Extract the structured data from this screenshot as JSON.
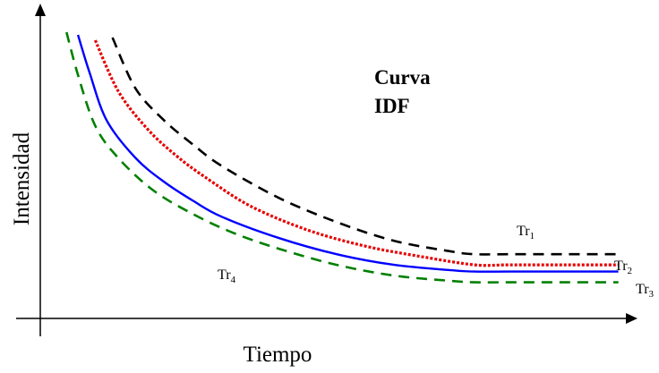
{
  "chart_data": {
    "type": "line",
    "title": "Curva IDF",
    "title_lines": [
      "Curva",
      "IDF"
    ],
    "xlabel": "Tiempo",
    "ylabel": "Intensidad",
    "xlim": [
      0,
      100
    ],
    "ylim": [
      0,
      100
    ],
    "grid": false,
    "axis_ticks": false,
    "series": [
      {
        "name": "Tr1",
        "label_base": "Tr",
        "label_sub": "1",
        "color": "#000000",
        "line_style": "dashed",
        "x": [
          11,
          15,
          20,
          25,
          30,
          40,
          50,
          60,
          70,
          74,
          80,
          90,
          99
        ],
        "y": [
          98,
          79,
          67,
          58,
          50,
          38,
          29,
          22,
          18,
          17,
          17,
          17,
          17
        ]
      },
      {
        "name": "Tr2",
        "label_base": "Tr",
        "label_sub": "2",
        "color": "#e60000",
        "line_style": "dotted",
        "x": [
          8,
          12,
          17,
          22,
          27,
          35,
          45,
          55,
          65,
          74,
          80,
          90,
          99
        ],
        "y": [
          97,
          78,
          64,
          54,
          46,
          35,
          26,
          20,
          16,
          13,
          13,
          13,
          13
        ]
      },
      {
        "name": "Tr3",
        "label_base": "Tr",
        "label_sub": "3",
        "color": "#0000ff",
        "line_style": "solid",
        "x": [
          5,
          7,
          10,
          15,
          20,
          25,
          30,
          40,
          50,
          60,
          70,
          74,
          80,
          90,
          99
        ],
        "y": [
          99,
          85,
          67,
          53,
          44,
          37,
          31,
          23,
          17,
          13,
          11,
          10.5,
          10.5,
          10.5,
          10.5
        ]
      },
      {
        "name": "Tr4",
        "label_base": "Tr",
        "label_sub": "4",
        "color": "#008000",
        "line_style": "dashed",
        "x": [
          3,
          5,
          8,
          12,
          18,
          25,
          32,
          40,
          50,
          60,
          70,
          74,
          80,
          90,
          99
        ],
        "y": [
          100,
          84,
          65,
          53,
          41,
          32,
          25,
          19,
          13,
          9,
          7,
          6.5,
          6.5,
          6.5,
          6.5
        ]
      }
    ]
  }
}
